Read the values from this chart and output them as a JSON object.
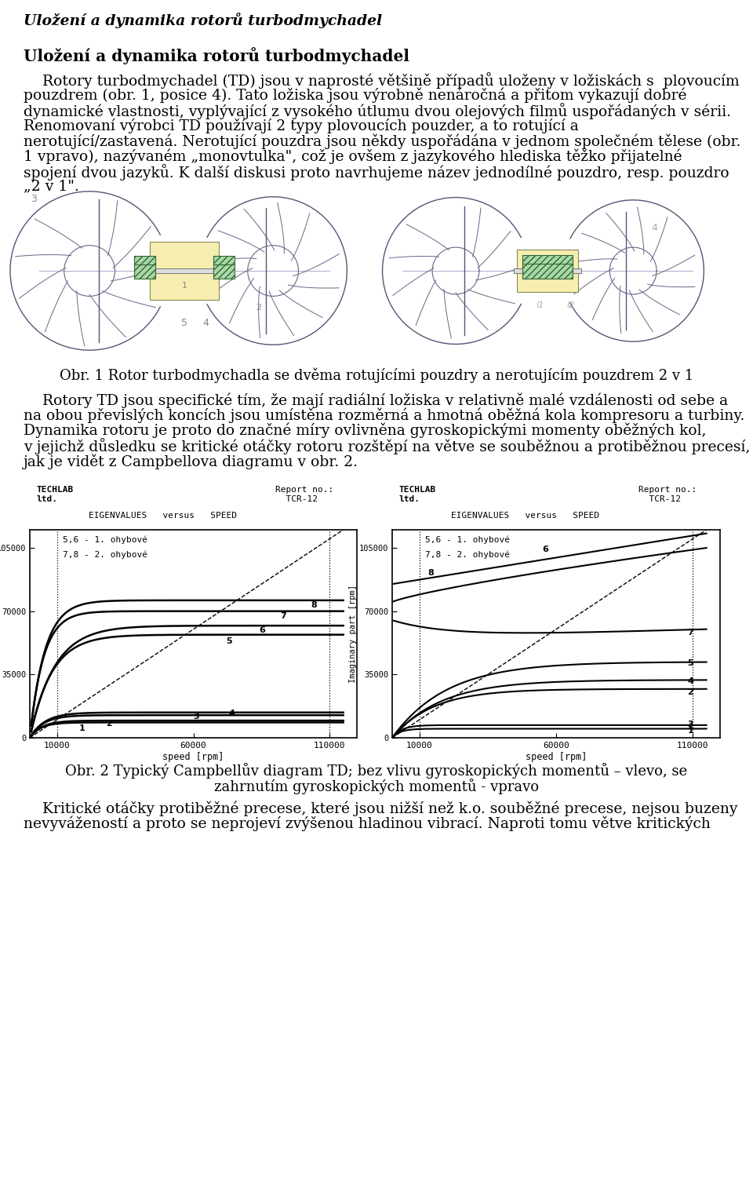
{
  "title_italic": "Uložení a dynamika rotorů turbodmychadel",
  "section_title": "Uložení a dynamika rotorů turbodmychadel",
  "para1_lines": [
    "    Rotory turbodmychadel (TD) jsou v naprosté většině případů uloženy v ložiskách s  plovoucím",
    "pouzdrem (obr. 1, posice 4). Tato ložiska jsou výrobně nenáročná a přitom vykazují dobré",
    "dynamické vlastnosti, vyplývající z vysokého útlumu dvou olejových filmů uspořádaných v sérii.",
    "Renomovaní výrobci TD používají 2 typy plovoucích pouzder, a to rotující a",
    "nerotující/zastavená. Nerotující pouzdra jsou někdy uspořádána v jednom společném tělese (obr.",
    "1 vpravo), nazývaném „monovtulka\", což je ovšem z jazykového hlediska těžko přijatelné",
    "spojení dvou jazyků. K další diskusi proto navrhujeme název jednodílné pouzdro, resp. pouzdro",
    "„2 v 1\"."
  ],
  "figure1_caption": "Obr. 1 Rotor turbodmychadla se dvěma rotujícími pouzdry a nerotujícím pouzdrem 2 v 1",
  "para2_lines": [
    "    Rotory TD jsou specifické tím, že mají radiální ložiska v relativně malé vzdálenosti od sebe a",
    "na obou převislých koncích jsou umístěna rozměrná a hmotná oběžná kola kompresoru a turbiny.",
    "Dynamika rotoru je proto do značné míry ovlivněna gyroskopickými momenty oběžných kol,",
    "v jejichž důsledku se kritické otáčky rotoru rozštěpí na větve se souběžnou a protiběžnou precesí,",
    "jak je vidět z Campbellova diagramu v obr. 2."
  ],
  "figure2_caption_line1": "Obr. 2 Typický Campbellův diagram TD; bez vlivu gyroskopických momentů – vlevo, se",
  "figure2_caption_line2": "zahrnutím gyroskopických momentů - vpravo",
  "para3_lines": [
    "    Kritické otáčky protiběžné precese, které jsou nižší než k.o. souběžné precese, nejsou buzeny",
    "nevyvážeností a proto se neprojeví zvýšenou hladinou vibrací. Naproti tomu větve kritických"
  ],
  "bg_color": "#ffffff",
  "text_color": "#000000"
}
